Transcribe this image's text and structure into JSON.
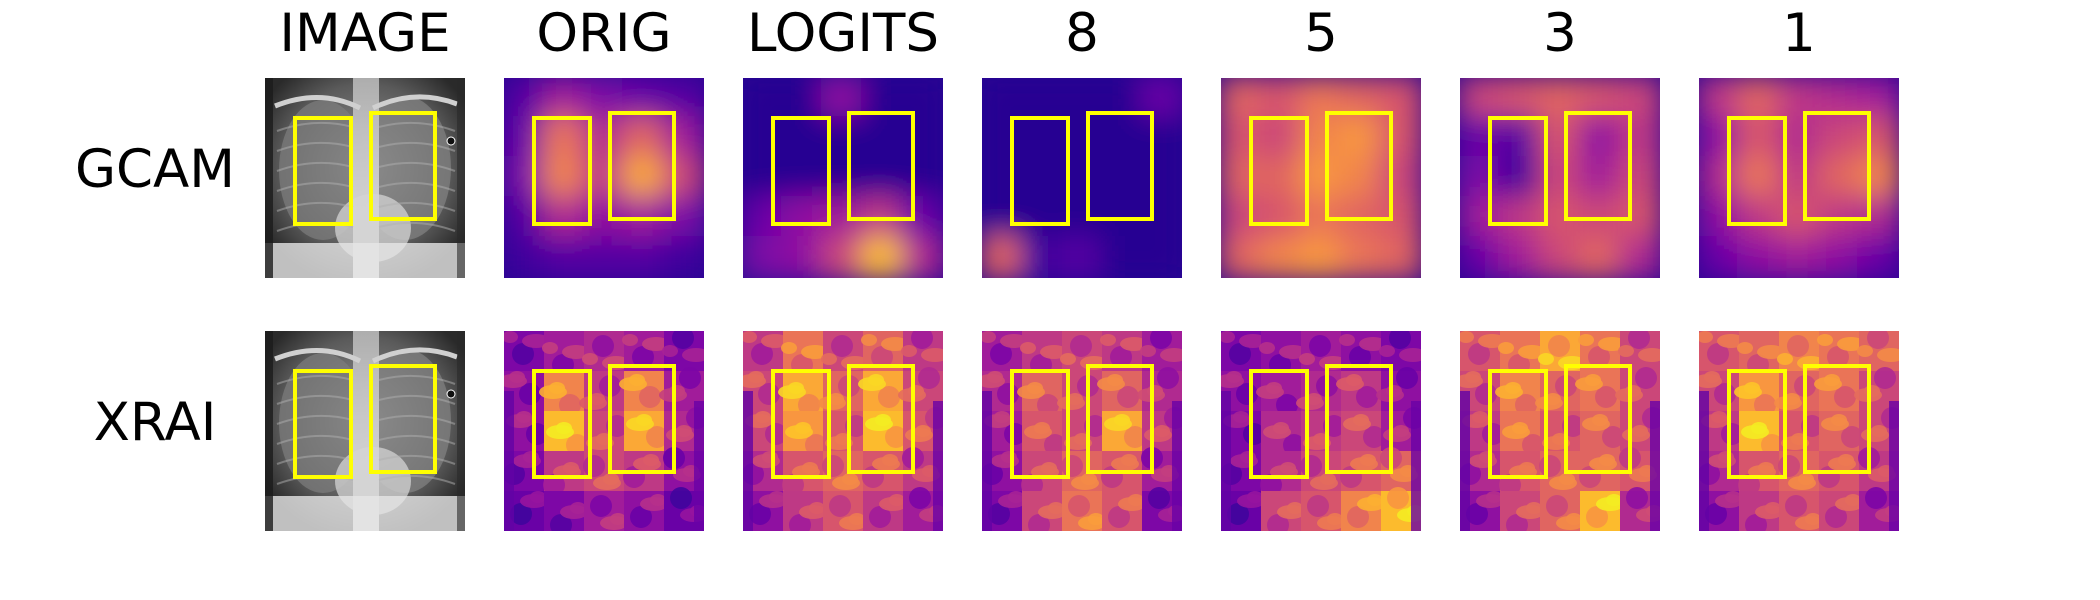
{
  "columns": [
    "IMAGE",
    "ORIG",
    "LOGITS",
    "8",
    "5",
    "3",
    "1"
  ],
  "rows": [
    {
      "label": "GCAM",
      "kind": "gcam"
    },
    {
      "label": "XRAI",
      "kind": "xrai"
    }
  ],
  "colors": {
    "annotation_box": "#ffff00",
    "colormap": [
      "#0d0887",
      "#46039f",
      "#7201a8",
      "#9c179e",
      "#bd3786",
      "#d8576b",
      "#ed7953",
      "#fb9f3a",
      "#fdca26",
      "#f0f921"
    ]
  },
  "heatmap_levels": {
    "gcam": {
      "ORIG": [
        [
          0.15,
          0.35,
          0.25,
          0.2,
          0.15
        ],
        [
          0.2,
          0.65,
          0.4,
          0.6,
          0.35
        ],
        [
          0.25,
          0.7,
          0.45,
          0.8,
          0.5
        ],
        [
          0.15,
          0.4,
          0.3,
          0.35,
          0.25
        ],
        [
          0.1,
          0.15,
          0.15,
          0.15,
          0.1
        ]
      ],
      "LOGITS": [
        [
          0.05,
          0.05,
          0.3,
          0.05,
          0.05
        ],
        [
          0.05,
          0.05,
          0.05,
          0.05,
          0.05
        ],
        [
          0.05,
          0.05,
          0.05,
          0.05,
          0.05
        ],
        [
          0.2,
          0.3,
          0.35,
          0.45,
          0.2
        ],
        [
          0.25,
          0.3,
          0.5,
          0.85,
          0.4
        ]
      ],
      "8": [
        [
          0.05,
          0.05,
          0.05,
          0.05,
          0.2
        ],
        [
          0.05,
          0.05,
          0.05,
          0.05,
          0.05
        ],
        [
          0.05,
          0.05,
          0.05,
          0.05,
          0.05
        ],
        [
          0.05,
          0.05,
          0.05,
          0.05,
          0.05
        ],
        [
          0.6,
          0.1,
          0.15,
          0.05,
          0.05
        ]
      ],
      "5": [
        [
          0.6,
          0.55,
          0.65,
          0.6,
          0.55
        ],
        [
          0.55,
          0.5,
          0.7,
          0.75,
          0.55
        ],
        [
          0.6,
          0.6,
          0.75,
          0.7,
          0.5
        ],
        [
          0.5,
          0.55,
          0.65,
          0.6,
          0.55
        ],
        [
          0.6,
          0.7,
          0.75,
          0.65,
          0.6
        ]
      ],
      "3": [
        [
          0.5,
          0.55,
          0.6,
          0.55,
          0.5
        ],
        [
          0.2,
          0.15,
          0.55,
          0.3,
          0.45
        ],
        [
          0.25,
          0.1,
          0.5,
          0.35,
          0.5
        ],
        [
          0.35,
          0.45,
          0.55,
          0.5,
          0.55
        ],
        [
          0.2,
          0.35,
          0.5,
          0.6,
          0.4
        ]
      ],
      "1": [
        [
          0.45,
          0.6,
          0.45,
          0.4,
          0.35
        ],
        [
          0.3,
          0.55,
          0.4,
          0.5,
          0.55
        ],
        [
          0.4,
          0.65,
          0.45,
          0.6,
          0.7
        ],
        [
          0.3,
          0.45,
          0.55,
          0.45,
          0.4
        ],
        [
          0.2,
          0.3,
          0.35,
          0.3,
          0.2
        ]
      ]
    },
    "xrai": {
      "ORIG": [
        [
          0.25,
          0.35,
          0.4,
          0.35,
          0.25
        ],
        [
          0.3,
          0.7,
          0.45,
          0.7,
          0.35
        ],
        [
          0.3,
          0.85,
          0.5,
          0.8,
          0.4
        ],
        [
          0.25,
          0.45,
          0.5,
          0.45,
          0.3
        ],
        [
          0.2,
          0.25,
          0.35,
          0.3,
          0.2
        ]
      ],
      "LOGITS": [
        [
          0.45,
          0.65,
          0.5,
          0.6,
          0.45
        ],
        [
          0.5,
          0.8,
          0.6,
          0.8,
          0.5
        ],
        [
          0.5,
          0.75,
          0.55,
          0.85,
          0.55
        ],
        [
          0.4,
          0.55,
          0.6,
          0.55,
          0.45
        ],
        [
          0.3,
          0.45,
          0.55,
          0.45,
          0.35
        ]
      ],
      "8": [
        [
          0.35,
          0.45,
          0.5,
          0.45,
          0.35
        ],
        [
          0.4,
          0.6,
          0.5,
          0.6,
          0.4
        ],
        [
          0.35,
          0.55,
          0.5,
          0.8,
          0.45
        ],
        [
          0.3,
          0.5,
          0.6,
          0.55,
          0.35
        ],
        [
          0.25,
          0.5,
          0.65,
          0.55,
          0.25
        ]
      ],
      "5": [
        [
          0.25,
          0.3,
          0.35,
          0.3,
          0.25
        ],
        [
          0.3,
          0.35,
          0.4,
          0.45,
          0.3
        ],
        [
          0.25,
          0.4,
          0.45,
          0.5,
          0.35
        ],
        [
          0.25,
          0.4,
          0.5,
          0.55,
          0.6
        ],
        [
          0.2,
          0.5,
          0.55,
          0.7,
          0.85
        ]
      ],
      "3": [
        [
          0.55,
          0.65,
          0.8,
          0.65,
          0.5
        ],
        [
          0.5,
          0.7,
          0.6,
          0.65,
          0.5
        ],
        [
          0.45,
          0.65,
          0.55,
          0.6,
          0.5
        ],
        [
          0.4,
          0.55,
          0.6,
          0.6,
          0.55
        ],
        [
          0.3,
          0.5,
          0.6,
          0.85,
          0.4
        ]
      ],
      "1": [
        [
          0.55,
          0.6,
          0.7,
          0.65,
          0.6
        ],
        [
          0.5,
          0.75,
          0.6,
          0.65,
          0.5
        ],
        [
          0.45,
          0.85,
          0.55,
          0.6,
          0.5
        ],
        [
          0.4,
          0.55,
          0.6,
          0.55,
          0.45
        ],
        [
          0.3,
          0.45,
          0.55,
          0.5,
          0.35
        ]
      ]
    }
  }
}
